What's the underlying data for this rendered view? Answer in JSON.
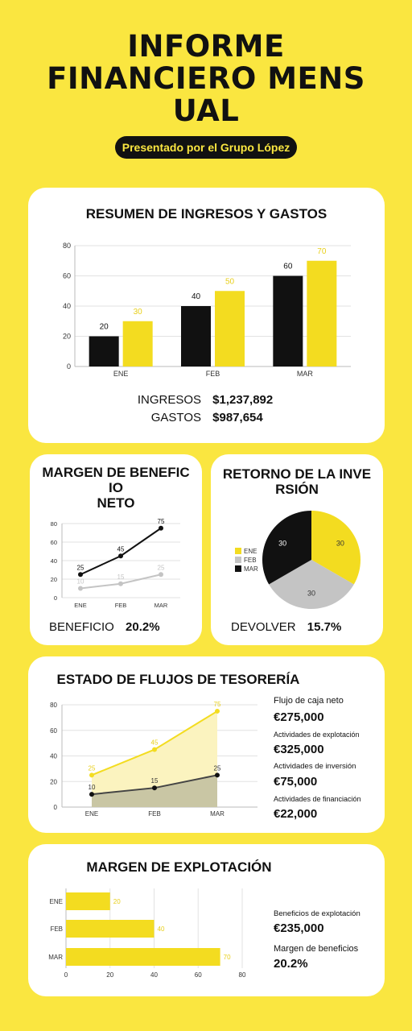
{
  "header": {
    "title_lines": [
      "INFORME",
      "FINANCIERO MENS",
      "UAL"
    ],
    "subtitle": "Presentado por el Grupo López"
  },
  "colors": {
    "yellow": "#f3dc20",
    "yellow_bg": "#fae640",
    "black": "#111111",
    "gray": "#c4c4c4",
    "light_gray": "#e2e2e2"
  },
  "income": {
    "title": "RESUMEN DE INGRESOS Y GASTOS",
    "ingresos_label": "INGRESOS",
    "ingresos_value": "$1,237,892",
    "gastos_label": "GASTOS",
    "gastos_value": "$987,654"
  },
  "margin": {
    "title_lines": [
      "MARGEN DE BENEFIC",
      "IO",
      "NETO"
    ],
    "stat_label": "BENEFICIO",
    "stat_value": "20.2%"
  },
  "roi": {
    "title_lines": [
      "RETORNO DE LA INVE",
      "RSIÓN"
    ],
    "stat_label": "DEVOLVER",
    "stat_value": "15.7%"
  },
  "cash": {
    "title": "ESTADO DE FLUJOS DE TESORERÍA",
    "stats": [
      {
        "label": "Flujo de caja neto",
        "value": "€275,000"
      },
      {
        "label": "Actividades de explotación",
        "value": "€325,000"
      },
      {
        "label": "Actividades de inversión",
        "value": "€75,000"
      },
      {
        "label": "Actividades de financiación",
        "value": "€22,000"
      }
    ]
  },
  "operating": {
    "title": "MARGEN DE EXPLOTACIÓN",
    "stats": [
      {
        "label": "Beneficios de explotación",
        "value": "€235,000"
      },
      {
        "label": "Margen de beneficios",
        "value": "20.2%"
      }
    ]
  },
  "chart_data": [
    {
      "type": "bar",
      "categories": [
        "ENE",
        "FEB",
        "MAR"
      ],
      "series": [
        {
          "values": [
            20,
            40,
            60
          ],
          "color": "#111111"
        },
        {
          "values": [
            30,
            50,
            70
          ],
          "color": "#f3dc20"
        }
      ],
      "ylim": [
        0,
        80
      ],
      "yticks": [
        0,
        20,
        40,
        60,
        80
      ],
      "grid": true
    },
    {
      "type": "line",
      "categories": [
        "ENE",
        "FEB",
        "MAR"
      ],
      "series": [
        {
          "values": [
            25,
            45,
            75
          ],
          "color": "#111111"
        },
        {
          "values": [
            10,
            15,
            25
          ],
          "color": "#c4c4c4"
        }
      ],
      "ylim": [
        0,
        80
      ],
      "yticks": [
        0,
        20,
        40,
        60,
        80
      ],
      "grid": true
    },
    {
      "type": "pie",
      "labels": [
        "ENE",
        "FEB",
        "MAR"
      ],
      "values": [
        30,
        30,
        30
      ],
      "colors": [
        "#f3dc20",
        "#c4c4c4",
        "#111111"
      ],
      "legend": "left"
    },
    {
      "type": "area",
      "categories": [
        "ENE",
        "FEB",
        "MAR"
      ],
      "series": [
        {
          "values": [
            25,
            45,
            75
          ],
          "color": "#f3dc20"
        },
        {
          "values": [
            10,
            15,
            25
          ],
          "color": "#111111"
        }
      ],
      "ylim": [
        0,
        80
      ],
      "yticks": [
        0,
        20,
        40,
        60,
        80
      ],
      "grid": true
    },
    {
      "type": "bar",
      "orientation": "horizontal",
      "categories": [
        "ENE",
        "FEB",
        "MAR"
      ],
      "values": [
        20,
        40,
        70
      ],
      "color": "#f3dc20",
      "xlim": [
        0,
        80
      ],
      "xticks": [
        0,
        20,
        40,
        60,
        80
      ],
      "grid": true
    }
  ]
}
